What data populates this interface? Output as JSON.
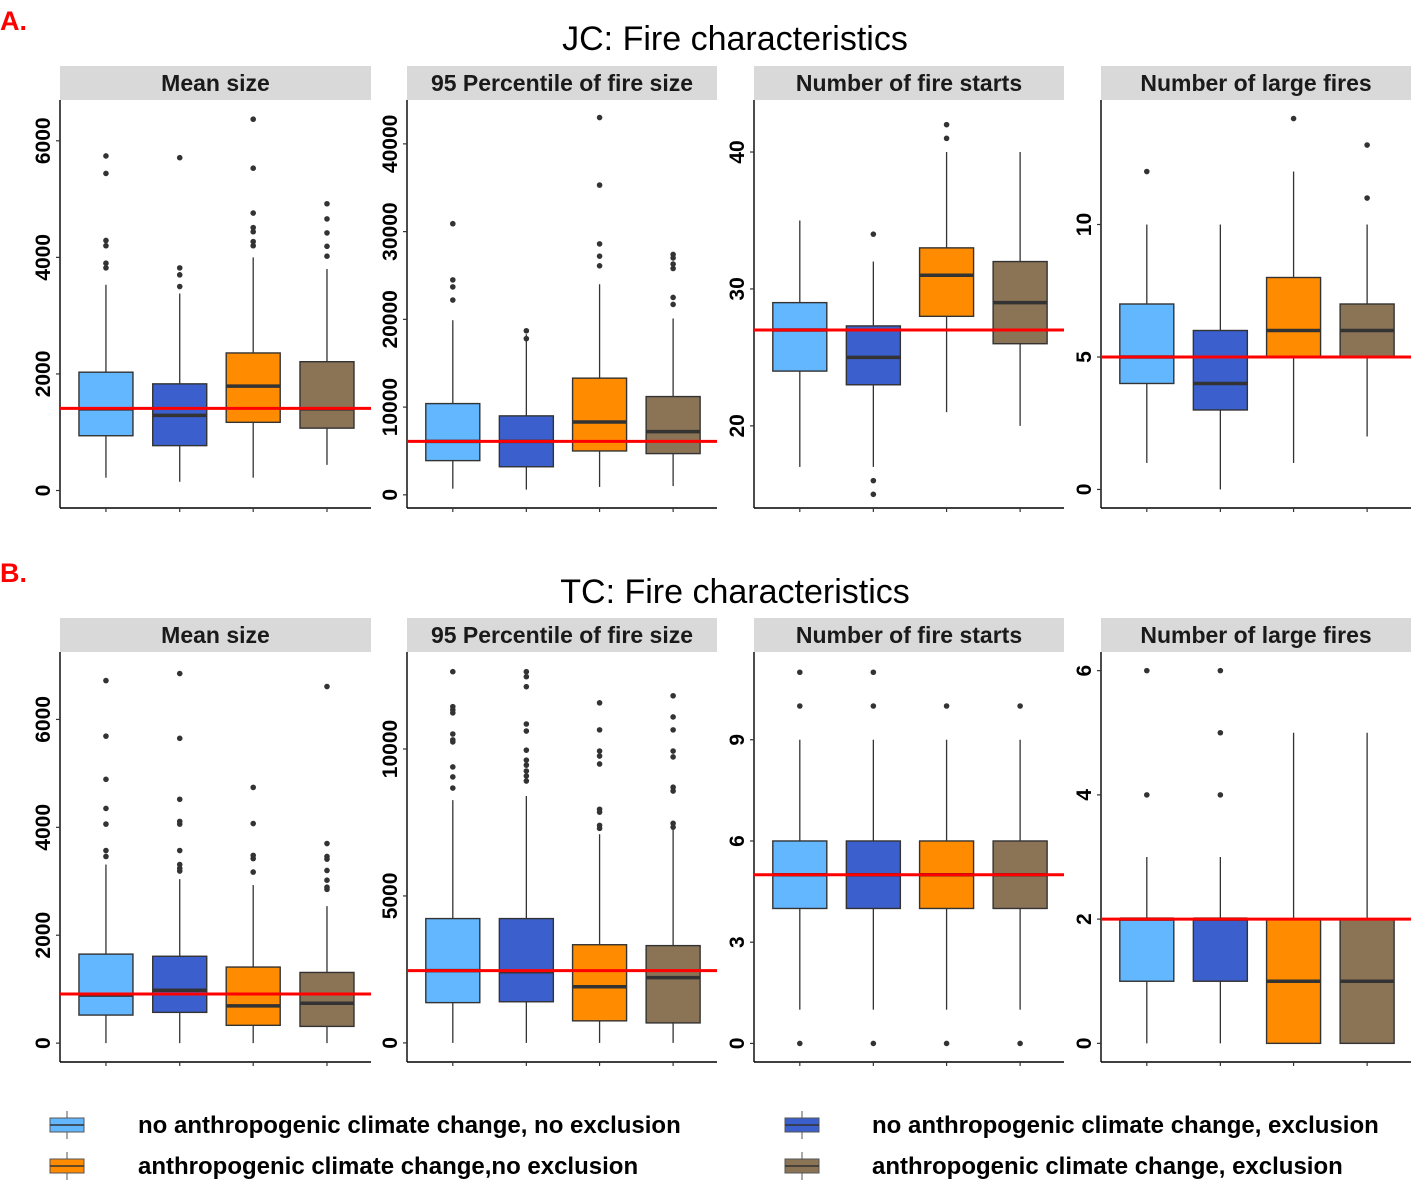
{
  "groups": [
    {
      "key": "nocc_noex",
      "label": "no anthropogenic climate change, no exclusion",
      "color": "#63b7fe"
    },
    {
      "key": "nocc_ex",
      "label": "no anthropogenic climate change, exclusion",
      "color": "#3b5fcc"
    },
    {
      "key": "cc_noex",
      "label": "anthropogenic climate change,no exclusion",
      "color": "#ff8c00"
    },
    {
      "key": "cc_ex",
      "label": "anthropogenic climate change, exclusion",
      "color": "#8b7355"
    }
  ],
  "colors": {
    "reference_line": "#ff0000",
    "box_outline": "#333333",
    "strip_bg": "#d9d9d9",
    "panel_letter": "#ff0000"
  },
  "chart_data": [
    {
      "type": "boxplot",
      "panel_letter": "A.",
      "title": "JC: Fire characteristics",
      "facets": [
        {
          "title": "Mean size",
          "ylim": [
            -300,
            6700
          ],
          "yticks": [
            0,
            2000,
            4000,
            6000
          ],
          "tick_labels": [
            "0",
            "2000",
            "4000",
            "6000"
          ],
          "reference_line": 1410,
          "boxes": [
            {
              "q1": 940,
              "median": 1400,
              "q3": 2030,
              "whisker_low": 220,
              "whisker_high": 3530,
              "outliers": [
                5740,
                5440,
                4290,
                4200,
                3900,
                3820
              ]
            },
            {
              "q1": 770,
              "median": 1290,
              "q3": 1830,
              "whisker_low": 150,
              "whisker_high": 3380,
              "outliers": [
                5710,
                3820,
                3700,
                3500
              ]
            },
            {
              "q1": 1170,
              "median": 1790,
              "q3": 2360,
              "whisker_low": 220,
              "whisker_high": 4000,
              "outliers": [
                6370,
                5530,
                4760,
                4510,
                4440,
                4270,
                4200
              ]
            },
            {
              "q1": 1070,
              "median": 1400,
              "q3": 2210,
              "whisker_low": 440,
              "whisker_high": 3800,
              "outliers": [
                4920,
                4660,
                4420,
                4190,
                4020
              ]
            }
          ]
        },
        {
          "title": "95 Percentile of fire size",
          "ylim": [
            -1500,
            45000
          ],
          "yticks": [
            0,
            10000,
            20000,
            30000,
            40000
          ],
          "tick_labels": [
            "0",
            "10000",
            "20000",
            "30000",
            "40000"
          ],
          "reference_line": 6100,
          "boxes": [
            {
              "q1": 3900,
              "median": 6100,
              "q3": 10400,
              "whisker_low": 700,
              "whisker_high": 19900,
              "outliers": [
                30900,
                24500,
                23700,
                22200
              ]
            },
            {
              "q1": 3200,
              "median": 6100,
              "q3": 9000,
              "whisker_low": 600,
              "whisker_high": 18300,
              "outliers": [
                18700,
                17800
              ]
            },
            {
              "q1": 5000,
              "median": 8300,
              "q3": 13300,
              "whisker_low": 900,
              "whisker_high": 24000,
              "outliers": [
                43000,
                35300,
                28600,
                27200,
                26100
              ]
            },
            {
              "q1": 4700,
              "median": 7200,
              "q3": 11200,
              "whisker_low": 1000,
              "whisker_high": 20100,
              "outliers": [
                27400,
                27000,
                26300,
                25800,
                22500,
                21700
              ]
            }
          ]
        },
        {
          "title": "Number of fire starts",
          "ylim": [
            14,
            43.8
          ],
          "yticks": [
            20,
            30,
            40
          ],
          "tick_labels": [
            "20",
            "30",
            "40"
          ],
          "reference_line": 27,
          "boxes": [
            {
              "q1": 24,
              "median": 27,
              "q3": 29,
              "whisker_low": 17,
              "whisker_high": 35,
              "outliers": []
            },
            {
              "q1": 23,
              "median": 25,
              "q3": 27.3,
              "whisker_low": 17,
              "whisker_high": 32,
              "outliers": [
                34,
                16,
                15
              ]
            },
            {
              "q1": 28,
              "median": 31,
              "q3": 33,
              "whisker_low": 21,
              "whisker_high": 40,
              "outliers": [
                42,
                41
              ]
            },
            {
              "q1": 26,
              "median": 29,
              "q3": 32,
              "whisker_low": 20,
              "whisker_high": 40,
              "outliers": []
            }
          ]
        },
        {
          "title": "Number of large fires",
          "ylim": [
            -0.7,
            14.7
          ],
          "yticks": [
            0,
            5,
            10
          ],
          "tick_labels": [
            "0",
            "5",
            "10"
          ],
          "reference_line": 5,
          "boxes": [
            {
              "q1": 4,
              "median": 5,
              "q3": 7,
              "whisker_low": 1,
              "whisker_high": 10,
              "outliers": [
                12
              ]
            },
            {
              "q1": 3,
              "median": 4,
              "q3": 6,
              "whisker_low": 0,
              "whisker_high": 10,
              "outliers": []
            },
            {
              "q1": 5,
              "median": 6,
              "q3": 8,
              "whisker_low": 1,
              "whisker_high": 12,
              "outliers": [
                14
              ]
            },
            {
              "q1": 5,
              "median": 6,
              "q3": 7,
              "whisker_low": 2,
              "whisker_high": 10,
              "outliers": [
                13,
                11
              ]
            }
          ]
        }
      ]
    },
    {
      "type": "boxplot",
      "panel_letter": "B.",
      "title": "TC: Fire characteristics",
      "facets": [
        {
          "title": "Mean size",
          "ylim": [
            -350,
            7250
          ],
          "yticks": [
            0,
            2000,
            4000,
            6000
          ],
          "tick_labels": [
            "0",
            "2000",
            "4000",
            "6000"
          ],
          "reference_line": 910,
          "boxes": [
            {
              "q1": 520,
              "median": 890,
              "q3": 1650,
              "whisker_low": 0,
              "whisker_high": 3310,
              "outliers": [
                6720,
                5690,
                4890,
                4350,
                4060,
                3570,
                3460
              ]
            },
            {
              "q1": 570,
              "median": 980,
              "q3": 1610,
              "whisker_low": 0,
              "whisker_high": 3040,
              "outliers": [
                6850,
                5650,
                4520,
                4110,
                4060,
                3570,
                3310,
                3240,
                3190
              ]
            },
            {
              "q1": 330,
              "median": 690,
              "q3": 1410,
              "whisker_low": 0,
              "whisker_high": 2930,
              "outliers": [
                4740,
                4070,
                3480,
                3420,
                3170
              ]
            },
            {
              "q1": 310,
              "median": 740,
              "q3": 1310,
              "whisker_low": 0,
              "whisker_high": 2540,
              "outliers": [
                6610,
                3700,
                3460,
                3410,
                3200,
                3020,
                2890,
                2850
              ]
            }
          ]
        },
        {
          "title": "95 Percentile of fire size",
          "ylim": [
            -650,
            13300
          ],
          "yticks": [
            0,
            5000,
            10000
          ],
          "tick_labels": [
            "0",
            "5000",
            "10000"
          ],
          "reference_line": 2460,
          "boxes": [
            {
              "q1": 1370,
              "median": 2460,
              "q3": 4230,
              "whisker_low": 0,
              "whisker_high": 8260,
              "outliers": [
                12630,
                11440,
                11330,
                11230,
                10510,
                10310,
                10240,
                9390,
                9050,
                8670
              ]
            },
            {
              "q1": 1400,
              "median": 2420,
              "q3": 4230,
              "whisker_low": 0,
              "whisker_high": 8400,
              "outliers": [
                12630,
                12460,
                12120,
                10850,
                10610,
                9960,
                9620,
                9450,
                9250,
                9080,
                8910
              ]
            },
            {
              "q1": 750,
              "median": 1910,
              "q3": 3340,
              "whisker_low": 0,
              "whisker_high": 7100,
              "outliers": [
                11570,
                10650,
                9930,
                9760,
                9490,
                7950,
                7850,
                7400,
                7300
              ]
            },
            {
              "q1": 680,
              "median": 2220,
              "q3": 3310,
              "whisker_low": 0,
              "whisker_high": 7340,
              "outliers": [
                11810,
                11090,
                10650,
                9930,
                9730,
                8700,
                8570,
                7470,
                7340
              ]
            }
          ]
        },
        {
          "title": "Number of fire starts",
          "ylim": [
            -0.55,
            11.6
          ],
          "yticks": [
            0,
            3,
            6,
            9
          ],
          "tick_labels": [
            "0",
            "3",
            "6",
            "9"
          ],
          "reference_line": 5,
          "boxes": [
            {
              "q1": 4,
              "median": 5,
              "q3": 6,
              "whisker_low": 1,
              "whisker_high": 9,
              "outliers": [
                11,
                10,
                0
              ]
            },
            {
              "q1": 4,
              "median": 5,
              "q3": 6,
              "whisker_low": 1,
              "whisker_high": 9,
              "outliers": [
                11,
                10,
                0
              ]
            },
            {
              "q1": 4,
              "median": 5,
              "q3": 6,
              "whisker_low": 1,
              "whisker_high": 9,
              "outliers": [
                10,
                0
              ]
            },
            {
              "q1": 4,
              "median": 5,
              "q3": 6,
              "whisker_low": 1,
              "whisker_high": 9,
              "outliers": [
                10,
                0
              ]
            }
          ]
        },
        {
          "title": "Number of large fires",
          "ylim": [
            -0.3,
            6.3
          ],
          "yticks": [
            0,
            2,
            4,
            6
          ],
          "tick_labels": [
            "0",
            "2",
            "4",
            "6"
          ],
          "reference_line": 2,
          "boxes": [
            {
              "q1": 1,
              "median": 2,
              "q3": 2,
              "whisker_low": 0,
              "whisker_high": 3,
              "outliers": [
                6,
                4
              ]
            },
            {
              "q1": 1,
              "median": 2,
              "q3": 2,
              "whisker_low": 0,
              "whisker_high": 3,
              "outliers": [
                6,
                5,
                4
              ]
            },
            {
              "q1": 0,
              "median": 1,
              "q3": 2,
              "whisker_low": 0,
              "whisker_high": 5,
              "outliers": []
            },
            {
              "q1": 0,
              "median": 1,
              "q3": 2,
              "whisker_low": 0,
              "whisker_high": 5,
              "outliers": []
            }
          ]
        }
      ]
    }
  ]
}
